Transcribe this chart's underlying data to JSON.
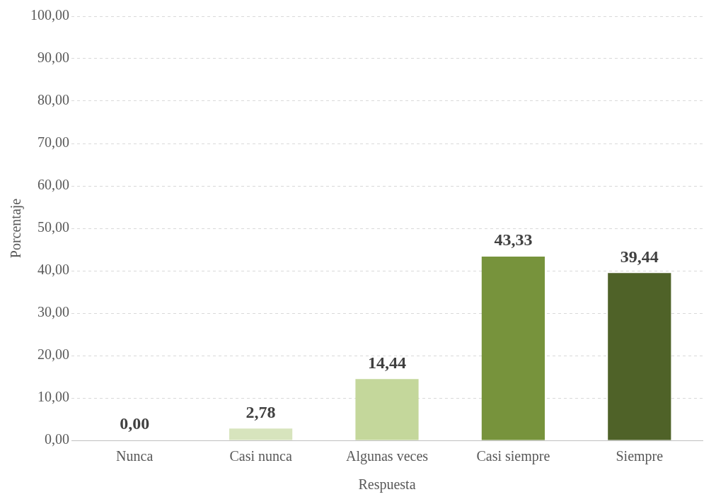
{
  "chart_data": {
    "type": "bar",
    "xlabel": "Respuesta",
    "ylabel": "Porcentaje",
    "categories": [
      "Nunca",
      "Casi nunca",
      "Algunas veces",
      "Casi siempre",
      "Siempre"
    ],
    "values": [
      0,
      2.78,
      14.44,
      43.33,
      39.44
    ],
    "colors": [
      "#ebf1de",
      "#d7e4bd",
      "#c4d79b",
      "#77933c",
      "#4f6228"
    ],
    "value_labels": [
      "0,00",
      "2,78",
      "14,44",
      "43,33",
      "39,44"
    ],
    "ylim": [
      0,
      100
    ],
    "yticks": [
      {
        "value": 0,
        "label": "0,00"
      },
      {
        "value": 10,
        "label": "10,00"
      },
      {
        "value": 20,
        "label": "20,00"
      },
      {
        "value": 30,
        "label": "30,00"
      },
      {
        "value": 40,
        "label": "40,00"
      },
      {
        "value": 50,
        "label": "50,00"
      },
      {
        "value": 60,
        "label": "60,00"
      },
      {
        "value": 70,
        "label": "70,00"
      },
      {
        "value": 80,
        "label": "80,00"
      },
      {
        "value": 90,
        "label": "90,00"
      },
      {
        "value": 100,
        "label": "100,00"
      }
    ],
    "grid": "y",
    "legend": false
  }
}
